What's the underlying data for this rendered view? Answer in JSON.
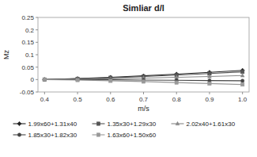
{
  "chart_data": {
    "type": "line",
    "title": "Simliar d/l",
    "x_label": "m/s",
    "y_label": "Mz",
    "x": [
      0.4,
      0.5,
      0.6,
      0.7,
      0.8,
      0.9,
      1.0
    ],
    "xlim": [
      0.38,
      1.02
    ],
    "ylim": [
      -0.05,
      0.25
    ],
    "xticks": [
      0.4,
      0.5,
      0.6,
      0.7,
      0.8,
      0.9,
      {
        "value": 1.0,
        "label": "1.0"
      }
    ],
    "yticks": [
      -0.05,
      0,
      0.05,
      0.1,
      0.15,
      0.2,
      0.25
    ],
    "grid": false,
    "legend": "bottom",
    "series": [
      {
        "name": "1.99x60+1.31x40",
        "color": "#222222",
        "marker": "diamond",
        "values": [
          0.0,
          0.004,
          0.009,
          0.015,
          0.022,
          0.029,
          0.037
        ]
      },
      {
        "name": "1.35x30+1.29x30",
        "color": "#555555",
        "marker": "square",
        "values": [
          0.0,
          0.003,
          0.007,
          0.012,
          0.018,
          0.024,
          0.031
        ]
      },
      {
        "name": "2.02x40+1.61x30",
        "color": "#888888",
        "marker": "triangle",
        "values": [
          0.0,
          0.001,
          0.003,
          0.006,
          0.009,
          0.012,
          0.016
        ]
      },
      {
        "name": "1.85x30+1.82x30",
        "color": "#444444",
        "marker": "circle",
        "values": [
          0.0,
          0.0,
          -0.001,
          -0.002,
          -0.003,
          -0.004,
          -0.005
        ]
      },
      {
        "name": "1.63x60+1.50x60",
        "color": "#999999",
        "marker": "square",
        "values": [
          0.0,
          -0.002,
          -0.005,
          -0.008,
          -0.012,
          -0.016,
          -0.02
        ]
      }
    ]
  }
}
